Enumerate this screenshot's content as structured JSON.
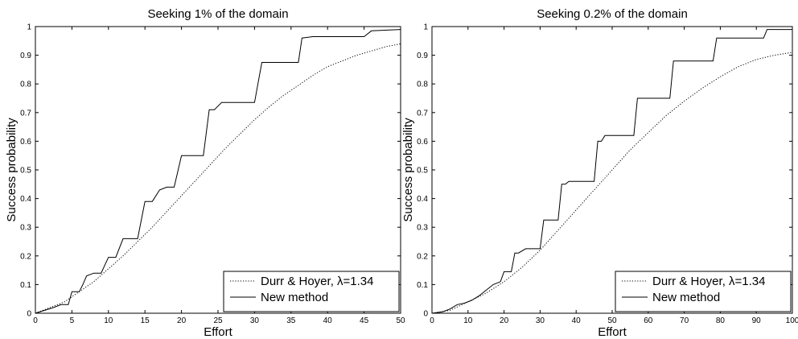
{
  "chart_data": [
    {
      "type": "line",
      "title": "Seeking 1% of the domain",
      "xlabel": "Effort",
      "ylabel": "Success probability",
      "xlim": [
        0,
        50
      ],
      "ylim": [
        0,
        1
      ],
      "xticks": [
        "0",
        "5",
        "10",
        "15",
        "20",
        "25",
        "30",
        "35",
        "40",
        "45",
        "50"
      ],
      "yticks": [
        "0",
        "0.1",
        "0.2",
        "0.3",
        "0.4",
        "0.5",
        "0.6",
        "0.7",
        "0.8",
        "0.9",
        "1"
      ],
      "grid": false,
      "legend_position": "bottom-right",
      "series": [
        {
          "name": "Durr & Hoyer, λ=1.34",
          "style": "dotted",
          "x": [
            0,
            2,
            4,
            6,
            8,
            10,
            12,
            14,
            16,
            18,
            20,
            22,
            24,
            26,
            28,
            30,
            32,
            34,
            36,
            38,
            40,
            42,
            44,
            46,
            48,
            50
          ],
          "y": [
            0,
            0.02,
            0.04,
            0.075,
            0.11,
            0.155,
            0.2,
            0.25,
            0.3,
            0.355,
            0.41,
            0.465,
            0.52,
            0.575,
            0.625,
            0.675,
            0.72,
            0.76,
            0.795,
            0.83,
            0.86,
            0.88,
            0.9,
            0.915,
            0.93,
            0.94
          ]
        },
        {
          "name": "New method",
          "style": "solid",
          "x": [
            0,
            2.5,
            3.5,
            4.5,
            5,
            6,
            6.5,
            7,
            8,
            9,
            10,
            11,
            12,
            14,
            15,
            16,
            17,
            18,
            19,
            20,
            23,
            23.8,
            24.5,
            25.5,
            30,
            31,
            36,
            36.5,
            38,
            45,
            46,
            50
          ],
          "y": [
            0,
            0.02,
            0.03,
            0.03,
            0.075,
            0.075,
            0.1,
            0.13,
            0.14,
            0.14,
            0.195,
            0.195,
            0.26,
            0.26,
            0.39,
            0.39,
            0.43,
            0.44,
            0.44,
            0.55,
            0.55,
            0.71,
            0.71,
            0.735,
            0.735,
            0.875,
            0.875,
            0.96,
            0.965,
            0.965,
            0.985,
            0.99
          ]
        }
      ]
    },
    {
      "type": "line",
      "title": "Seeking 0.2% of the domain",
      "xlabel": "Effort",
      "ylabel": "Success probability",
      "xlim": [
        0,
        100
      ],
      "ylim": [
        0,
        1
      ],
      "xticks": [
        "0",
        "10",
        "20",
        "30",
        "40",
        "50",
        "60",
        "70",
        "80",
        "90",
        "100"
      ],
      "yticks": [
        "0",
        "0.1",
        "0.2",
        "0.3",
        "0.4",
        "0.5",
        "0.6",
        "0.7",
        "0.8",
        "0.9",
        "1"
      ],
      "grid": false,
      "legend_position": "bottom-right",
      "series": [
        {
          "name": "Durr & Hoyer, λ=1.34",
          "style": "dotted",
          "x": [
            0,
            5,
            10,
            15,
            20,
            25,
            30,
            35,
            40,
            45,
            50,
            55,
            60,
            65,
            70,
            75,
            80,
            85,
            90,
            95,
            100
          ],
          "y": [
            0,
            0.01,
            0.04,
            0.07,
            0.11,
            0.16,
            0.22,
            0.29,
            0.36,
            0.43,
            0.5,
            0.57,
            0.63,
            0.69,
            0.74,
            0.785,
            0.825,
            0.86,
            0.885,
            0.9,
            0.91
          ]
        },
        {
          "name": "New method",
          "style": "solid",
          "x": [
            0,
            3,
            5,
            7,
            9,
            11,
            13,
            15,
            17,
            19,
            20,
            22,
            23,
            24,
            26,
            27,
            30,
            31,
            35,
            36,
            37,
            38,
            45,
            46,
            47,
            48,
            56,
            57,
            66,
            67,
            78,
            79,
            92,
            93,
            100
          ],
          "y": [
            0,
            0.005,
            0.015,
            0.03,
            0.035,
            0.045,
            0.06,
            0.08,
            0.1,
            0.11,
            0.145,
            0.145,
            0.21,
            0.21,
            0.225,
            0.225,
            0.225,
            0.325,
            0.325,
            0.45,
            0.45,
            0.46,
            0.46,
            0.6,
            0.6,
            0.62,
            0.62,
            0.75,
            0.75,
            0.88,
            0.88,
            0.96,
            0.96,
            0.99,
            0.99
          ]
        }
      ]
    }
  ]
}
